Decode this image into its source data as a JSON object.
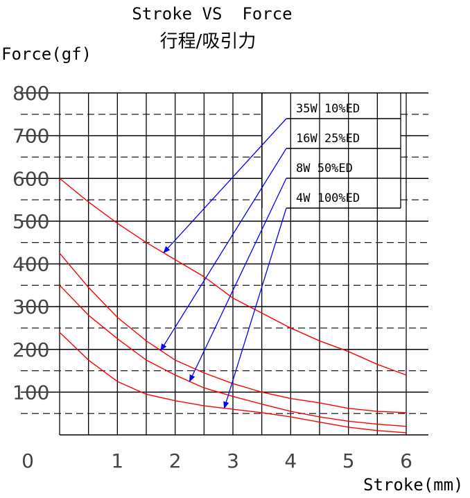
{
  "chart_data": {
    "type": "line",
    "title": "Stroke VS  Force",
    "subtitle": "行程/吸引力",
    "ylabel": "Force(gf)",
    "xlabel": "Stroke(mm)",
    "xlim": [
      0,
      6
    ],
    "ylim": [
      0,
      800
    ],
    "x_ticks": [
      "0",
      "1",
      "2",
      "3",
      "4",
      "5",
      "6"
    ],
    "y_ticks": [
      "100",
      "200",
      "300",
      "400",
      "500",
      "600",
      "700",
      "800"
    ],
    "grid": true,
    "colors": {
      "curve": "#ff0000",
      "arrow": "#0000ff",
      "grid": "#000000"
    },
    "x": [
      0,
      0.5,
      1,
      1.5,
      2,
      2.5,
      3,
      3.5,
      4,
      4.5,
      5,
      5.5,
      6
    ],
    "series": [
      {
        "name": "35W  10%ED",
        "values": [
          600,
          545,
          495,
          450,
          410,
          370,
          320,
          285,
          250,
          220,
          195,
          165,
          140
        ]
      },
      {
        "name": "16W  25%ED",
        "values": [
          425,
          345,
          275,
          220,
          175,
          145,
          120,
          100,
          85,
          75,
          62,
          55,
          52
        ]
      },
      {
        "name": "8W   50%ED",
        "values": [
          350,
          280,
          225,
          175,
          140,
          110,
          90,
          72,
          55,
          42,
          32,
          25,
          20
        ]
      },
      {
        "name": "4W  100%ED",
        "values": [
          240,
          175,
          125,
          95,
          80,
          68,
          60,
          52,
          42,
          30,
          18,
          10,
          5
        ]
      }
    ],
    "legend_placement": "top-right",
    "arrow_targets_x": [
      1.8,
      1.75,
      2.25,
      2.85
    ]
  }
}
